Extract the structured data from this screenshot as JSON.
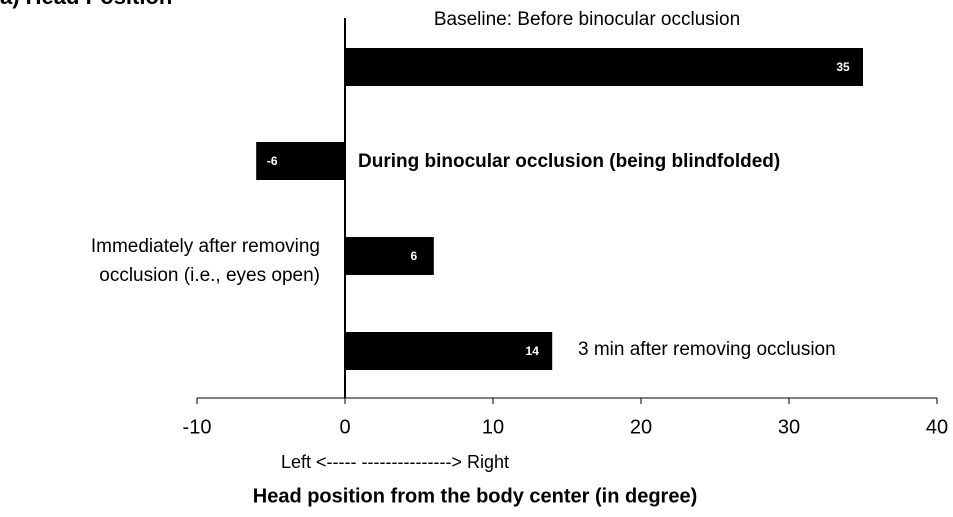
{
  "chart_data": {
    "type": "barh",
    "title": "a) Head Position",
    "categories": [
      "Baseline: Before binocular occlusion",
      "During binocular occlusion (being blindfolded)",
      "Immediately after removing occlusion (i.e., eyes open)",
      "3 min after removing occlusion"
    ],
    "values": [
      35,
      -6,
      6,
      14
    ],
    "color": "#000000",
    "xlim": [
      -10,
      40
    ],
    "xticks": [
      -10,
      0,
      10,
      20,
      30,
      40
    ],
    "direction_label": "Left <-----  ---------------> Right",
    "x_label": "Head position  from the body center (in degree)"
  }
}
